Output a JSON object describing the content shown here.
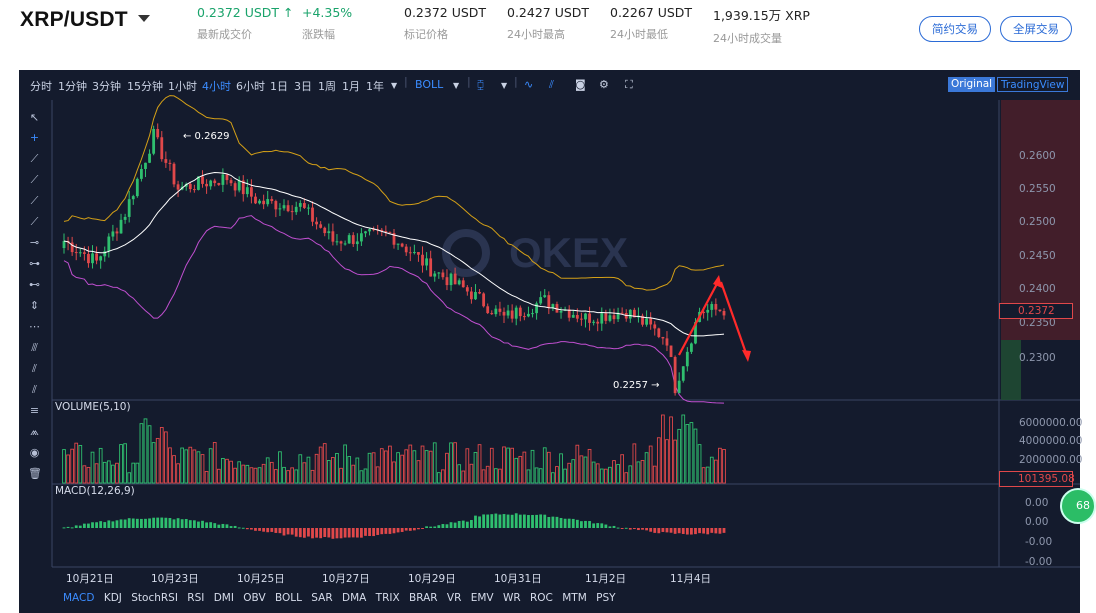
{
  "header": {
    "pair": "XRP/USDT",
    "stats": [
      {
        "value": "0.2372 USDT ↑",
        "label": "最新成交价",
        "color": "green"
      },
      {
        "value": "+4.35%",
        "label": "涨跌幅",
        "color": "green"
      },
      {
        "value": "0.2372 USDT",
        "label": "标记价格"
      },
      {
        "value": "0.2427 USDT",
        "label": "24小时最高"
      },
      {
        "value": "0.2267 USDT",
        "label": "24小时最低"
      },
      {
        "value": "1,939.15万 XRP",
        "label": "24小时成交量"
      }
    ],
    "simple_trade": "简约交易",
    "full_trade": "全屏交易"
  },
  "toolbar": {
    "intervals": [
      "分时",
      "1分钟",
      "3分钟",
      "15分钟",
      "1小时",
      "4小时",
      "6小时",
      "1日",
      "3日",
      "1周",
      "1月",
      "1年"
    ],
    "active_interval": "4小时",
    "indicator": "BOLL",
    "original": "Original",
    "tradingview": "TradingView"
  },
  "watermark": "OKEX",
  "chart_data": {
    "type": "candlestick",
    "price_axis": [
      "0.2600",
      "0.2550",
      "0.2500",
      "0.2450",
      "0.2400",
      "0.2350",
      "0.2300"
    ],
    "price_range": [
      0.2243,
      0.2671
    ],
    "current_price": "0.2372",
    "high_annotation": "← 0.2629",
    "low_annotation": "0.2257 →",
    "volume_label": "VOLUME(5,10)",
    "volume_axis": [
      "6000000.00",
      "4000000.00",
      "2000000.00"
    ],
    "current_volume": "101395.08",
    "macd_label": "MACD(12,26,9)",
    "macd_axis": [
      "0.00",
      "0.00",
      "-0.00",
      "-0.00"
    ],
    "time_axis": [
      "10月21日",
      "10月23日",
      "10月25日",
      "10月27日",
      "10月29日",
      "10月31日",
      "11月2日",
      "11月4日"
    ],
    "indicators": [
      "MACD",
      "KDJ",
      "StochRSI",
      "RSI",
      "DMI",
      "OBV",
      "BOLL",
      "SAR",
      "DMA",
      "TRIX",
      "BRAR",
      "VR",
      "EMV",
      "WR",
      "ROC",
      "MTM",
      "PSY"
    ],
    "active_indicator": "MACD",
    "colors": {
      "up": "#2fbf6f",
      "down": "#e0484a",
      "mid": "#ffffff",
      "upper": "#d4a017",
      "lower": "#c04fd0",
      "background": "#141b2d"
    }
  },
  "badge": "68"
}
